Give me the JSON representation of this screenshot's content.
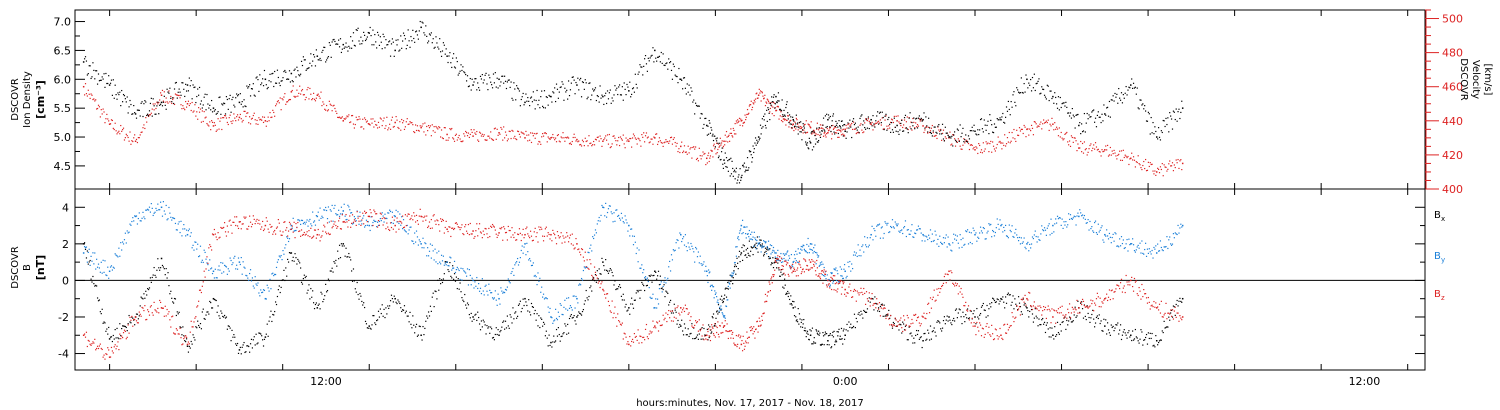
{
  "colors": {
    "black": "#000000",
    "red": "#dd2222",
    "blue": "#1a7fd8"
  },
  "xaxis": {
    "label": "hours:minutes, Nov. 17, 2017 - Nov. 18, 2017",
    "ticks": [
      {
        "t": 12,
        "label": "12:00"
      },
      {
        "t": 24,
        "label": "0:00"
      },
      {
        "t": 36,
        "label": "12:00"
      }
    ],
    "range_hours": [
      6.2,
      37.4
    ]
  },
  "chart_data": [
    {
      "type": "scatter",
      "panel": "plasma",
      "ylabel_left": [
        "DSCOVR",
        "Ion Density",
        "[cm⁻³]"
      ],
      "ylabel_right": [
        "DSCOVR",
        "Velocity",
        "[km/s]"
      ],
      "ylim_left": [
        4.1,
        7.2
      ],
      "yticks_left": [
        "4.5",
        "5.0",
        "5.5",
        "6.0",
        "6.5",
        "7.0"
      ],
      "ylim_right": [
        400,
        505
      ],
      "yticks_right": [
        "400",
        "420",
        "440",
        "460",
        "480",
        "500"
      ],
      "series": [
        {
          "axis": "left",
          "color": "black",
          "x": [
            6.4,
            7.0,
            7.6,
            8.2,
            8.8,
            9.4,
            10.0,
            10.6,
            11.2,
            11.8,
            12.4,
            13.0,
            13.6,
            14.2,
            14.8,
            15.4,
            16.0,
            16.6,
            17.2,
            17.8,
            18.4,
            19.0,
            19.6,
            20.2,
            20.8,
            21.2,
            21.6,
            22.0,
            22.4,
            22.8,
            23.2,
            23.6,
            24.0,
            24.6,
            25.2,
            25.8,
            26.4,
            27.0,
            27.6,
            28.2,
            28.8,
            29.4,
            30.0,
            30.6,
            31.2,
            31.8
          ],
          "y": [
            6.3,
            5.9,
            5.4,
            5.6,
            5.9,
            5.5,
            5.6,
            6.0,
            6.1,
            6.4,
            6.6,
            6.8,
            6.5,
            6.9,
            6.4,
            5.9,
            6.0,
            5.6,
            5.7,
            5.9,
            5.7,
            5.8,
            6.5,
            6.0,
            5.2,
            4.6,
            4.3,
            5.0,
            5.7,
            5.3,
            4.9,
            5.3,
            5.1,
            5.3,
            5.2,
            5.3,
            5.0,
            5.1,
            5.3,
            6.0,
            5.7,
            5.2,
            5.4,
            5.9,
            5.0,
            5.5
          ]
        },
        {
          "axis": "right",
          "color": "red",
          "x": [
            6.4,
            7.0,
            7.6,
            8.2,
            8.8,
            9.4,
            10.0,
            10.6,
            11.2,
            11.8,
            12.4,
            13.0,
            13.6,
            14.2,
            14.8,
            15.4,
            16.0,
            16.6,
            17.2,
            17.8,
            18.4,
            19.0,
            19.6,
            20.2,
            20.8,
            21.2,
            21.6,
            22.0,
            22.4,
            22.8,
            23.2,
            23.6,
            24.0,
            24.6,
            25.2,
            25.8,
            26.4,
            27.0,
            27.6,
            28.2,
            28.8,
            29.4,
            30.0,
            30.6,
            31.2,
            31.8
          ],
          "y": [
            460,
            438,
            428,
            455,
            450,
            437,
            442,
            440,
            457,
            455,
            440,
            438,
            439,
            436,
            432,
            431,
            433,
            430,
            430,
            429,
            428,
            428,
            430,
            425,
            418,
            428,
            440,
            455,
            446,
            438,
            436,
            433,
            435,
            438,
            440,
            437,
            430,
            423,
            427,
            435,
            438,
            424,
            423,
            418,
            410,
            415
          ]
        }
      ]
    },
    {
      "type": "scatter",
      "panel": "magnetic",
      "ylabel_left": [
        "DSCOVR",
        "B",
        "[nT]"
      ],
      "ylim": [
        -4.9,
        5.0
      ],
      "yticks": [
        "-4",
        "-2",
        "0",
        "2",
        "4"
      ],
      "series": [
        {
          "name": "Bx",
          "color": "black",
          "x": [
            6.4,
            7.0,
            7.6,
            8.2,
            8.8,
            9.4,
            10.0,
            10.6,
            11.2,
            11.8,
            12.4,
            13.0,
            13.6,
            14.2,
            14.8,
            15.4,
            16.0,
            16.6,
            17.2,
            17.8,
            18.4,
            19.0,
            19.6,
            20.2,
            20.8,
            21.2,
            21.6,
            22.0,
            22.4,
            22.8,
            23.2,
            23.6,
            24.0,
            24.6,
            25.2,
            25.8,
            26.4,
            27.0,
            27.6,
            28.2,
            28.8,
            29.4,
            30.0,
            30.6,
            31.2,
            31.8
          ],
          "y": [
            2.0,
            -3.2,
            -2.0,
            1.2,
            -3.6,
            -1.0,
            -3.8,
            -3.1,
            1.5,
            -1.5,
            2.0,
            -2.5,
            -1.0,
            -3.0,
            1.0,
            -2.0,
            -3.0,
            -1.0,
            -3.4,
            -2.0,
            1.0,
            -1.5,
            0.5,
            -2.5,
            -3.0,
            -1.0,
            1.5,
            2.0,
            1.0,
            -1.5,
            -3.0,
            -3.3,
            -3.0,
            -1.0,
            -2.5,
            -3.3,
            -2.0,
            -2.0,
            -1.0,
            -1.5,
            -3.0,
            -1.5,
            -2.5,
            -3.0,
            -3.3,
            -1.0
          ]
        },
        {
          "name": "By",
          "color": "blue",
          "x": [
            6.4,
            7.0,
            7.6,
            8.2,
            8.8,
            9.4,
            10.0,
            10.6,
            11.2,
            11.8,
            12.4,
            13.0,
            13.6,
            14.2,
            14.8,
            15.4,
            16.0,
            16.6,
            17.2,
            17.8,
            18.4,
            19.0,
            19.6,
            20.2,
            20.8,
            21.2,
            21.6,
            22.0,
            22.4,
            22.8,
            23.2,
            23.6,
            24.0,
            24.6,
            25.2,
            25.8,
            26.4,
            27.0,
            27.6,
            28.2,
            28.8,
            29.4,
            30.0,
            30.6,
            31.2,
            31.8
          ],
          "y": [
            1.5,
            0.5,
            3.5,
            4.0,
            2.5,
            0.5,
            1.0,
            -1.0,
            3.0,
            3.5,
            3.8,
            3.0,
            3.5,
            2.0,
            1.0,
            0.0,
            -1.0,
            2.0,
            -2.0,
            -1.0,
            4.0,
            3.0,
            -1.5,
            2.5,
            0.5,
            -2.0,
            3.0,
            2.0,
            1.5,
            1.0,
            2.0,
            0.0,
            0.5,
            2.5,
            3.0,
            2.5,
            2.0,
            2.5,
            3.0,
            2.0,
            3.0,
            3.5,
            2.5,
            2.0,
            1.5,
            3.0
          ]
        },
        {
          "name": "Bz",
          "color": "red",
          "x": [
            6.4,
            7.0,
            7.6,
            8.2,
            8.8,
            9.4,
            10.0,
            10.6,
            11.2,
            11.8,
            12.4,
            13.0,
            13.6,
            14.2,
            14.8,
            15.4,
            16.0,
            16.6,
            17.2,
            17.8,
            18.4,
            19.0,
            19.6,
            20.2,
            20.8,
            21.2,
            21.6,
            22.0,
            22.4,
            22.8,
            23.2,
            23.6,
            24.0,
            24.6,
            25.2,
            25.8,
            26.4,
            27.0,
            27.6,
            28.2,
            28.8,
            29.4,
            30.0,
            30.6,
            31.2,
            31.8
          ],
          "y": [
            -3.0,
            -4.2,
            -2.0,
            -1.5,
            -3.5,
            2.5,
            3.2,
            3.0,
            2.8,
            2.5,
            3.2,
            3.5,
            3.0,
            3.5,
            2.8,
            2.7,
            2.6,
            2.5,
            2.5,
            2.0,
            -0.5,
            -3.5,
            -2.5,
            -1.5,
            -3.0,
            -2.5,
            -3.5,
            -2.5,
            1.0,
            0.5,
            1.0,
            0.0,
            -0.5,
            -1.0,
            -2.5,
            -2.0,
            0.5,
            -2.5,
            -3.0,
            -1.0,
            -2.0,
            -1.5,
            -1.0,
            0.0,
            -1.5,
            -2.0
          ]
        }
      ],
      "legend": [
        {
          "label": "B",
          "sub": "x",
          "color": "black"
        },
        {
          "label": "B",
          "sub": "y",
          "color": "blue"
        },
        {
          "label": "B",
          "sub": "z",
          "color": "red"
        }
      ]
    }
  ]
}
